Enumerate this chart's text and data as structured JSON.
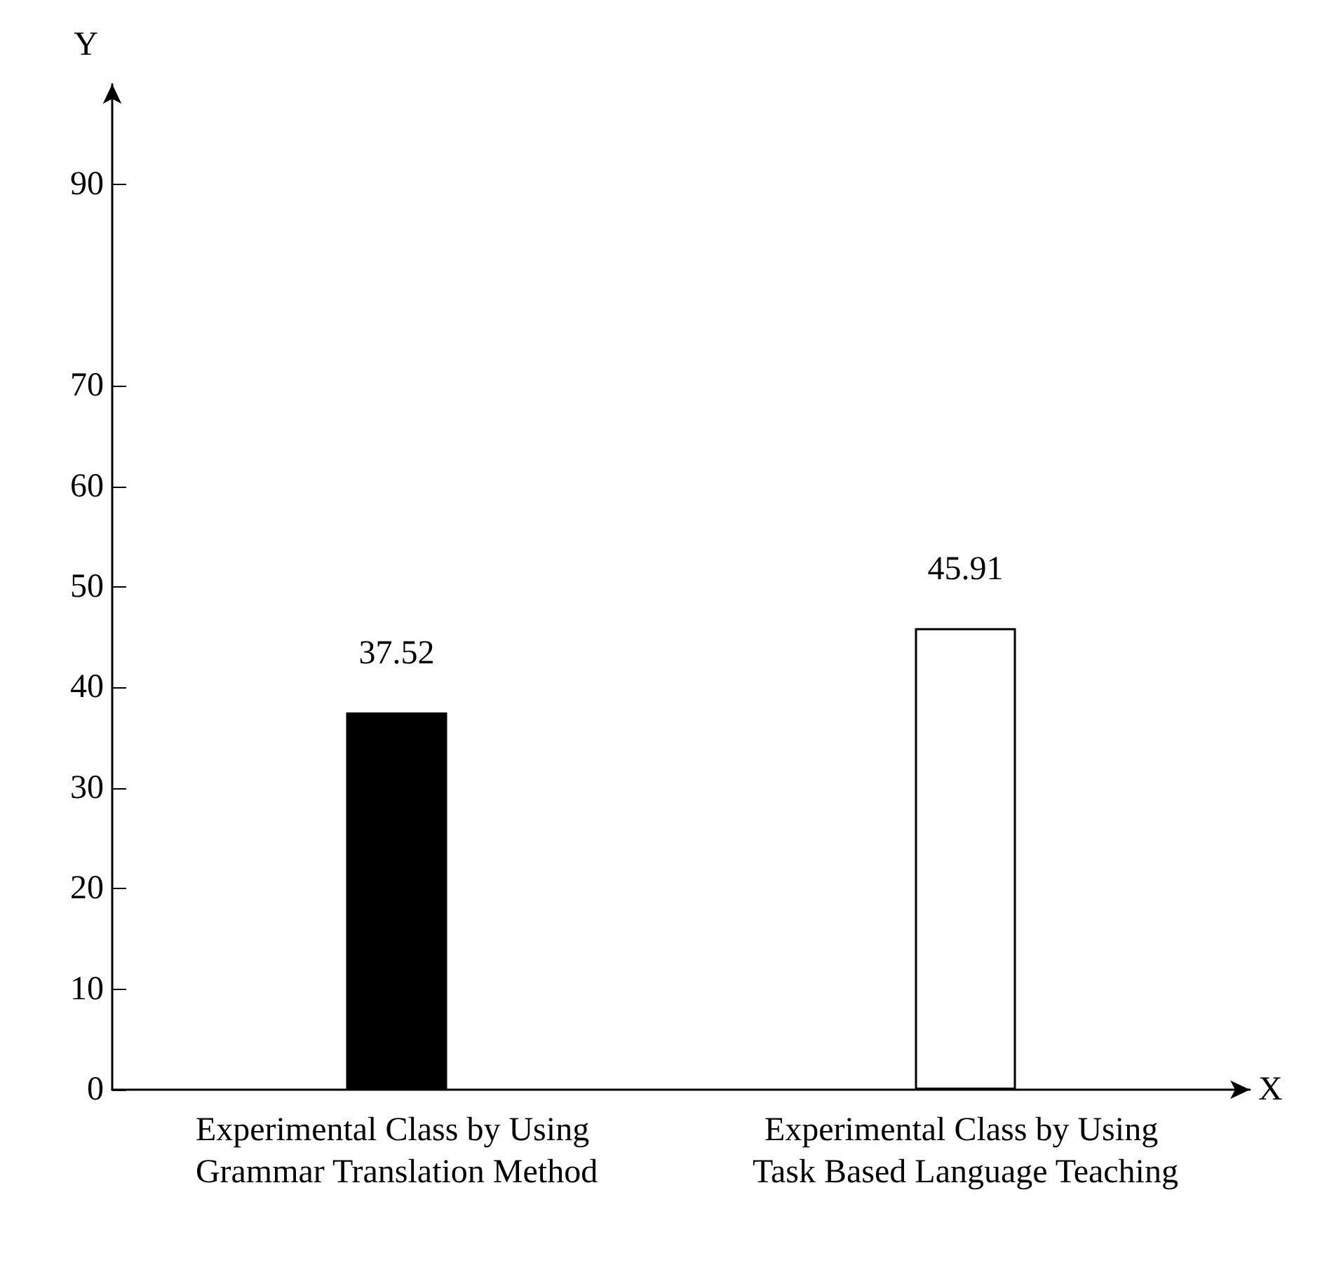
{
  "chart_data": {
    "type": "bar",
    "xlabel": "X",
    "ylabel": "Y",
    "categories": [
      "Experimental Class by Using Grammar Translation Method",
      "Experimental Class by Using Task Based Language Teaching"
    ],
    "values": [
      37.52,
      45.91
    ],
    "colors": [
      "#000000",
      "#ffffff"
    ],
    "ylim": [
      0,
      100
    ],
    "yticks": [
      0,
      10,
      20,
      30,
      40,
      50,
      60,
      70,
      90
    ],
    "data_labels": true,
    "grid": false
  }
}
